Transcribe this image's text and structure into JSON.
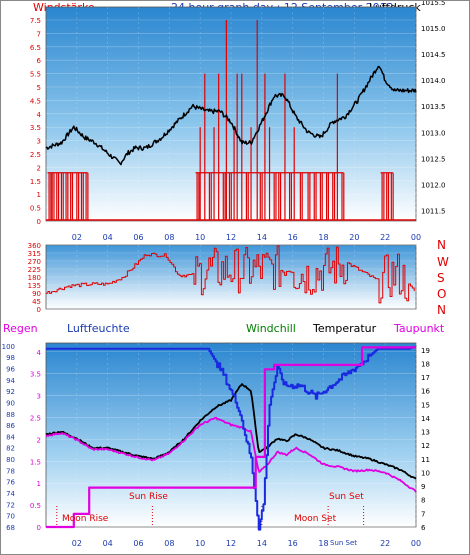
{
  "header": {
    "left_label": "Windstärke",
    "title": "24 hour graph day : 12 September 2012",
    "right_label": "Luftdruck"
  },
  "chart_data": [
    {
      "type": "bar",
      "name": "wind",
      "y_left_label": "Windstärke",
      "y_left_ticks": [
        0,
        0.5,
        1,
        1.5,
        2,
        2.5,
        3,
        3.5,
        4,
        4.5,
        5,
        5.5,
        6,
        6.5,
        7,
        7.5
      ],
      "y_right_label": "Luftdruck",
      "y_right_ticks": [
        1011.5,
        1012,
        1012.5,
        1013,
        1013.5,
        1014,
        1014.5,
        1015,
        1015.5
      ],
      "x_ticks": [
        "02",
        "04",
        "06",
        "08",
        "10",
        "12",
        "14",
        "16",
        "18",
        "20",
        "22",
        "00"
      ],
      "wind_spikes": [
        {
          "x": 0.2,
          "v": 1.8
        },
        {
          "x": 0.4,
          "v": 1.8
        },
        {
          "x": 0.7,
          "v": 1.8
        },
        {
          "x": 1.0,
          "v": 1.8
        },
        {
          "x": 1.3,
          "v": 1.8
        },
        {
          "x": 1.6,
          "v": 1.8
        },
        {
          "x": 2.0,
          "v": 1.8
        },
        {
          "x": 2.3,
          "v": 1.8
        },
        {
          "x": 2.6,
          "v": 1.8
        },
        {
          "x": 9.8,
          "v": 1.8
        },
        {
          "x": 10.0,
          "v": 3.5
        },
        {
          "x": 10.3,
          "v": 5.5
        },
        {
          "x": 10.6,
          "v": 1.8
        },
        {
          "x": 10.9,
          "v": 3.5
        },
        {
          "x": 11.2,
          "v": 5.5
        },
        {
          "x": 11.5,
          "v": 1.8
        },
        {
          "x": 11.7,
          "v": 7.5
        },
        {
          "x": 11.9,
          "v": 1.8
        },
        {
          "x": 12.2,
          "v": 3.5
        },
        {
          "x": 12.4,
          "v": 5.5
        },
        {
          "x": 12.7,
          "v": 5.5
        },
        {
          "x": 13.0,
          "v": 1.8
        },
        {
          "x": 13.3,
          "v": 3.5
        },
        {
          "x": 13.7,
          "v": 7.5
        },
        {
          "x": 13.9,
          "v": 1.8
        },
        {
          "x": 14.2,
          "v": 5.5
        },
        {
          "x": 14.5,
          "v": 3.5
        },
        {
          "x": 14.8,
          "v": 1.8
        },
        {
          "x": 15.1,
          "v": 1.8
        },
        {
          "x": 15.5,
          "v": 5.5
        },
        {
          "x": 15.8,
          "v": 1.8
        },
        {
          "x": 16.1,
          "v": 3.5
        },
        {
          "x": 16.5,
          "v": 1.8
        },
        {
          "x": 17.0,
          "v": 1.8
        },
        {
          "x": 17.4,
          "v": 1.8
        },
        {
          "x": 17.8,
          "v": 1.8
        },
        {
          "x": 18.2,
          "v": 1.8
        },
        {
          "x": 18.6,
          "v": 1.8
        },
        {
          "x": 18.9,
          "v": 5.5
        },
        {
          "x": 19.2,
          "v": 1.8
        },
        {
          "x": 21.8,
          "v": 1.8
        },
        {
          "x": 22.1,
          "v": 1.8
        },
        {
          "x": 22.4,
          "v": 1.8
        }
      ],
      "pressure": [
        {
          "x": 0,
          "v": 1012.7
        },
        {
          "x": 1,
          "v": 1012.8
        },
        {
          "x": 1.8,
          "v": 1013.1
        },
        {
          "x": 2.5,
          "v": 1012.9
        },
        {
          "x": 3.2,
          "v": 1012.8
        },
        {
          "x": 4,
          "v": 1012.6
        },
        {
          "x": 4.8,
          "v": 1012.4
        },
        {
          "x": 5.3,
          "v": 1012.6
        },
        {
          "x": 5.8,
          "v": 1012.7
        },
        {
          "x": 6.5,
          "v": 1012.7
        },
        {
          "x": 7.5,
          "v": 1012.9
        },
        {
          "x": 8.5,
          "v": 1013.2
        },
        {
          "x": 9.5,
          "v": 1013.5
        },
        {
          "x": 10.5,
          "v": 1013.4
        },
        {
          "x": 11.3,
          "v": 1013.4
        },
        {
          "x": 12,
          "v": 1013.2
        },
        {
          "x": 12.7,
          "v": 1012.8
        },
        {
          "x": 13.3,
          "v": 1012.8
        },
        {
          "x": 14,
          "v": 1013.2
        },
        {
          "x": 14.8,
          "v": 1013.7
        },
        {
          "x": 15.5,
          "v": 1013.7
        },
        {
          "x": 16.2,
          "v": 1013.3
        },
        {
          "x": 17,
          "v": 1013.0
        },
        {
          "x": 17.8,
          "v": 1012.9
        },
        {
          "x": 18.6,
          "v": 1013.2
        },
        {
          "x": 19.4,
          "v": 1013.3
        },
        {
          "x": 20.2,
          "v": 1013.6
        },
        {
          "x": 21,
          "v": 1014.0
        },
        {
          "x": 21.6,
          "v": 1014.3
        },
        {
          "x": 22,
          "v": 1014.0
        },
        {
          "x": 22.6,
          "v": 1013.8
        },
        {
          "x": 23.3,
          "v": 1013.8
        },
        {
          "x": 24,
          "v": 1013.8
        }
      ]
    },
    {
      "type": "line",
      "name": "wind-direction",
      "y_ticks": [
        0,
        45,
        90,
        135,
        180,
        225,
        270,
        315,
        360
      ],
      "right_letters": [
        "N",
        "W",
        "S",
        "O",
        "N"
      ],
      "dir_base": [
        {
          "x": 0,
          "v": 90
        },
        {
          "x": 1.5,
          "v": 130
        },
        {
          "x": 3,
          "v": 140
        },
        {
          "x": 4,
          "v": 140
        },
        {
          "x": 5,
          "v": 180
        },
        {
          "x": 6.5,
          "v": 310
        },
        {
          "x": 7.8,
          "v": 300
        },
        {
          "x": 8.6,
          "v": 190
        },
        {
          "x": 9.6,
          "v": 190
        },
        {
          "x": 10.5,
          "v": 220
        },
        {
          "x": 13,
          "v": 220
        },
        {
          "x": 15,
          "v": 230
        },
        {
          "x": 17,
          "v": 190
        },
        {
          "x": 19.5,
          "v": 260
        },
        {
          "x": 21.5,
          "v": 160
        },
        {
          "x": 22.8,
          "v": 200
        },
        {
          "x": 24,
          "v": 90
        }
      ]
    },
    {
      "type": "line",
      "name": "climate",
      "labels": {
        "regen": "Regen",
        "luftfeuchte": "Luftfeuchte",
        "windchill": "Windchill",
        "temperatur": "Temperatur",
        "taupunkt": "Taupunkt"
      },
      "y_humidity_ticks": [
        68,
        70,
        72,
        74,
        76,
        78,
        80,
        82,
        84,
        86,
        88,
        90,
        92,
        94,
        96,
        98,
        100
      ],
      "y_rain_ticks": [
        0,
        0.5,
        1,
        1.5,
        2,
        2.5,
        3,
        3.5,
        4
      ],
      "y_temp_ticks": [
        6,
        7,
        8,
        9,
        10,
        11,
        12,
        13,
        14,
        15,
        16,
        17,
        18,
        19
      ],
      "x_ticks": [
        "02",
        "04",
        "06",
        "08",
        "10",
        "12",
        "14",
        "16",
        "18",
        "20",
        "22",
        "00"
      ],
      "annotations": {
        "moon_rise": "Moon Rise",
        "sun_rise": "Sun Rise",
        "moon_set": "Moon Set",
        "sun_set": "Sun Set",
        "sun_set_small": "Sun Set"
      },
      "temperature": [
        {
          "x": 0,
          "v": 12.8
        },
        {
          "x": 1,
          "v": 13.0
        },
        {
          "x": 2,
          "v": 12.5
        },
        {
          "x": 3,
          "v": 11.8
        },
        {
          "x": 4,
          "v": 11.8
        },
        {
          "x": 5,
          "v": 11.5
        },
        {
          "x": 6,
          "v": 11.2
        },
        {
          "x": 7,
          "v": 11.0
        },
        {
          "x": 8,
          "v": 11.5
        },
        {
          "x": 9,
          "v": 12.5
        },
        {
          "x": 10,
          "v": 13.8
        },
        {
          "x": 11,
          "v": 14.8
        },
        {
          "x": 12,
          "v": 15.3
        },
        {
          "x": 12.7,
          "v": 16.5
        },
        {
          "x": 13.3,
          "v": 16.0
        },
        {
          "x": 13.8,
          "v": 11.5
        },
        {
          "x": 14.3,
          "v": 11.8
        },
        {
          "x": 15,
          "v": 12.5
        },
        {
          "x": 15.6,
          "v": 12.3
        },
        {
          "x": 16.2,
          "v": 12.8
        },
        {
          "x": 17,
          "v": 12.5
        },
        {
          "x": 18,
          "v": 11.8
        },
        {
          "x": 19,
          "v": 11.6
        },
        {
          "x": 20,
          "v": 11.2
        },
        {
          "x": 21,
          "v": 11.0
        },
        {
          "x": 22,
          "v": 10.6
        },
        {
          "x": 23,
          "v": 10.2
        },
        {
          "x": 24,
          "v": 9.5
        }
      ],
      "dewpoint": [
        {
          "x": 0,
          "v": 12.7
        },
        {
          "x": 1,
          "v": 12.9
        },
        {
          "x": 2,
          "v": 12.4
        },
        {
          "x": 3,
          "v": 11.7
        },
        {
          "x": 4,
          "v": 11.7
        },
        {
          "x": 5,
          "v": 11.4
        },
        {
          "x": 6,
          "v": 11.1
        },
        {
          "x": 7,
          "v": 10.9
        },
        {
          "x": 8,
          "v": 11.4
        },
        {
          "x": 9,
          "v": 12.4
        },
        {
          "x": 10,
          "v": 13.5
        },
        {
          "x": 11,
          "v": 14.0
        },
        {
          "x": 12,
          "v": 13.5
        },
        {
          "x": 12.7,
          "v": 13.3
        },
        {
          "x": 13.3,
          "v": 13.0
        },
        {
          "x": 13.8,
          "v": 10.0
        },
        {
          "x": 14.3,
          "v": 10.5
        },
        {
          "x": 15,
          "v": 11.5
        },
        {
          "x": 15.6,
          "v": 11.3
        },
        {
          "x": 16.2,
          "v": 11.8
        },
        {
          "x": 17,
          "v": 11.4
        },
        {
          "x": 18,
          "v": 10.6
        },
        {
          "x": 19,
          "v": 10.4
        },
        {
          "x": 20,
          "v": 10.1
        },
        {
          "x": 21,
          "v": 10.2
        },
        {
          "x": 22,
          "v": 10.0
        },
        {
          "x": 23,
          "v": 9.4
        },
        {
          "x": 24,
          "v": 8.6
        }
      ],
      "humidity": [
        {
          "x": 0,
          "v": 99.5
        },
        {
          "x": 10.5,
          "v": 99.5
        },
        {
          "x": 11.5,
          "v": 95
        },
        {
          "x": 12.5,
          "v": 89
        },
        {
          "x": 13.3,
          "v": 80
        },
        {
          "x": 13.8,
          "v": 68
        },
        {
          "x": 14.1,
          "v": 72
        },
        {
          "x": 14.5,
          "v": 90
        },
        {
          "x": 15,
          "v": 96
        },
        {
          "x": 15.5,
          "v": 93
        },
        {
          "x": 16.5,
          "v": 93
        },
        {
          "x": 17.5,
          "v": 91
        },
        {
          "x": 18.5,
          "v": 93
        },
        {
          "x": 19.5,
          "v": 95
        },
        {
          "x": 20.5,
          "v": 97
        },
        {
          "x": 21.5,
          "v": 99.5
        },
        {
          "x": 23.5,
          "v": 99.5
        },
        {
          "x": 24,
          "v": 100
        }
      ],
      "rain": [
        {
          "x": 0,
          "v": 0
        },
        {
          "x": 1.8,
          "v": 0
        },
        {
          "x": 1.8,
          "v": 0.3
        },
        {
          "x": 2.8,
          "v": 0.3
        },
        {
          "x": 2.8,
          "v": 0.9
        },
        {
          "x": 13.6,
          "v": 0.9
        },
        {
          "x": 13.6,
          "v": 1.6
        },
        {
          "x": 14.2,
          "v": 1.6
        },
        {
          "x": 14.2,
          "v": 3.6
        },
        {
          "x": 14.8,
          "v": 3.6
        },
        {
          "x": 14.8,
          "v": 3.7
        },
        {
          "x": 20.5,
          "v": 3.7
        },
        {
          "x": 20.5,
          "v": 4.1
        },
        {
          "x": 24,
          "v": 4.1
        }
      ]
    }
  ]
}
